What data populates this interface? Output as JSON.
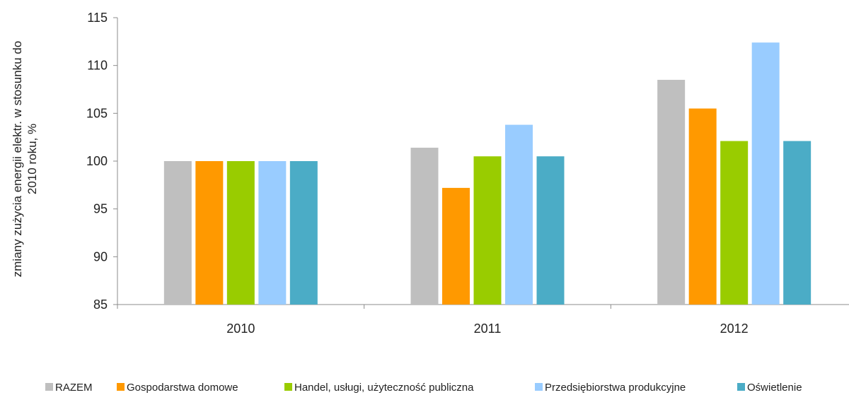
{
  "chart_data": {
    "type": "bar",
    "categories": [
      "2010",
      "2011",
      "2012"
    ],
    "series": [
      {
        "name": "RAZEM",
        "color": "#bfbfbf",
        "values": [
          100,
          101.4,
          108.5
        ]
      },
      {
        "name": "Gospodarstwa domowe",
        "color": "#ff9900",
        "values": [
          100,
          97.2,
          105.5
        ]
      },
      {
        "name": "Handel, usługi, użyteczność publiczna",
        "color": "#99cc00",
        "values": [
          100,
          100.5,
          102.1
        ]
      },
      {
        "name": "Przedsiębiorstwa produkcyjne",
        "color": "#99ccff",
        "values": [
          100,
          103.8,
          112.4
        ]
      },
      {
        "name": "Oświetlenie",
        "color": "#4bacc6",
        "values": [
          100,
          100.5,
          102.1
        ]
      }
    ],
    "ylabel_lines": [
      "zmiany  zużycia energii elektr. w stosunku do",
      "2010 roku, %"
    ],
    "ylim": [
      85,
      115
    ],
    "yticks": [
      "85",
      "90",
      "95",
      "100",
      "105",
      "110",
      "115"
    ],
    "grid": false,
    "legend_position": "bottom"
  }
}
